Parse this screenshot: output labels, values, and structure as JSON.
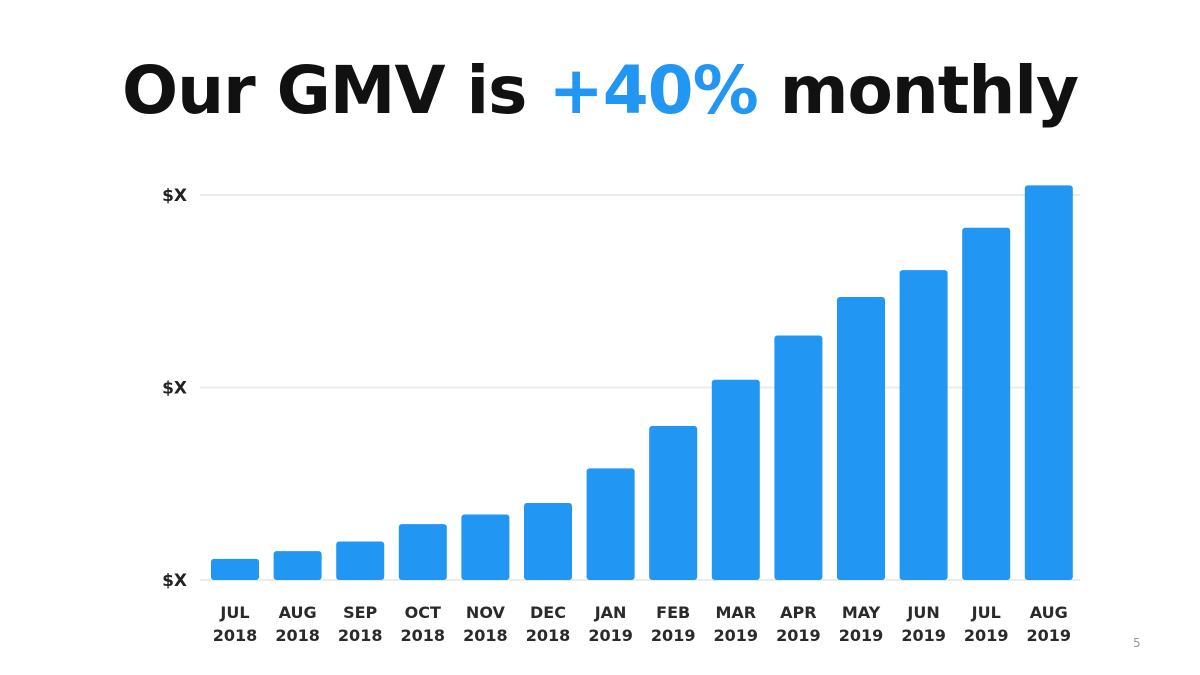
{
  "slide": {
    "title_prefix": "Our GMV is ",
    "title_accent": "+40%",
    "title_suffix": " monthly",
    "page_number": "5"
  },
  "colors": {
    "bar": "#2196f3",
    "accent": "#2196f3",
    "grid": "#ececec",
    "title": "#111111"
  },
  "chart_data": {
    "type": "bar",
    "title": "Our GMV is +40% monthly",
    "xlabel": "",
    "ylabel": "",
    "categories": [
      [
        "JUL",
        "2018"
      ],
      [
        "AUG",
        "2018"
      ],
      [
        "SEP",
        "2018"
      ],
      [
        "OCT",
        "2018"
      ],
      [
        "NOV",
        "2018"
      ],
      [
        "DEC",
        "2018"
      ],
      [
        "JAN",
        "2019"
      ],
      [
        "FEB",
        "2019"
      ],
      [
        "MAR",
        "2019"
      ],
      [
        "APR",
        "2019"
      ],
      [
        "MAY",
        "2019"
      ],
      [
        "JUN",
        "2019"
      ],
      [
        "JUL",
        "2019"
      ],
      [
        "AUG",
        "2019"
      ]
    ],
    "values": [
      11,
      15,
      20,
      29,
      34,
      40,
      58,
      80,
      104,
      127,
      147,
      161,
      183,
      205
    ],
    "ylim": [
      0,
      200
    ],
    "y_ticks": [
      {
        "value": 0,
        "label": "$X"
      },
      {
        "value": 100,
        "label": "$X"
      },
      {
        "value": 200,
        "label": "$X"
      }
    ],
    "grid": true,
    "legend": "none"
  }
}
